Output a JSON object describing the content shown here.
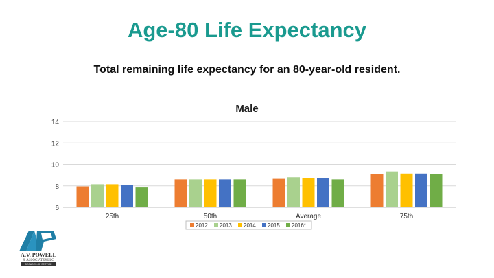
{
  "slide": {
    "title": "Age-80 Life Expectancy",
    "subtitle": "Total remaining life expectancy for an 80-year-old resident."
  },
  "chart_data": {
    "type": "bar",
    "title": "Male",
    "xlabel": "",
    "ylabel": "",
    "ylim": [
      6,
      14
    ],
    "yticks": [
      6,
      8,
      10,
      12,
      14
    ],
    "grid": true,
    "legend_position": "bottom",
    "categories": [
      "25th",
      "50th",
      "Average",
      "75th"
    ],
    "series": [
      {
        "name": "2012",
        "color": "#ED7D31",
        "values": [
          7.95,
          8.6,
          8.65,
          9.1
        ]
      },
      {
        "name": "2013",
        "color": "#A9D18E",
        "values": [
          8.15,
          8.6,
          8.8,
          9.35
        ]
      },
      {
        "name": "2014",
        "color": "#FFC000",
        "values": [
          8.15,
          8.6,
          8.7,
          9.15
        ]
      },
      {
        "name": "2015",
        "color": "#4472C4",
        "values": [
          8.05,
          8.6,
          8.7,
          9.15
        ]
      },
      {
        "name": "2016*",
        "color": "#70AD47",
        "values": [
          7.85,
          8.6,
          8.6,
          9.1
        ]
      }
    ]
  },
  "logo": {
    "name": "A.V. POWELL",
    "subname": "& ASSOCIATES LLC",
    "tagline": "DECADES OF SERVICE"
  }
}
